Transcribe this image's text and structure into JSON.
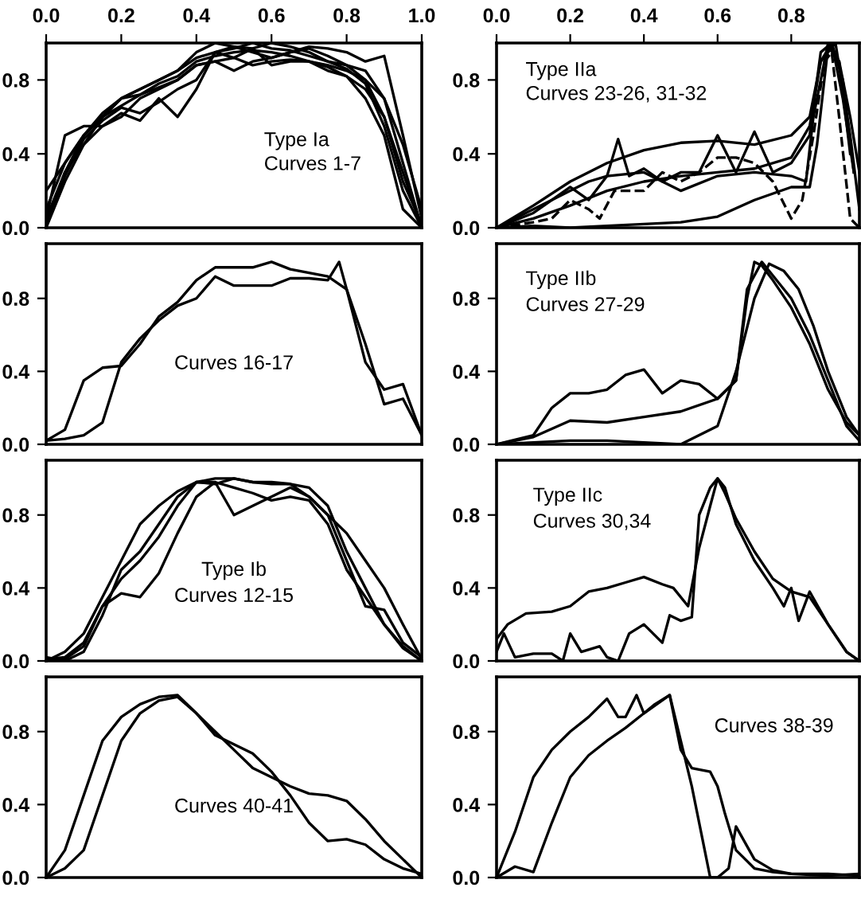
{
  "chart_data": [
    {
      "type": "line",
      "annotations": [
        "Type Ia",
        "Curves 1-7"
      ],
      "xlim": [
        0,
        1
      ],
      "ylim": [
        0,
        1.0
      ],
      "xticks": [
        {
          "value": 0,
          "label": "0.0"
        },
        {
          "value": 0.2,
          "label": "0.2"
        },
        {
          "value": 0.4,
          "label": "0.4"
        },
        {
          "value": 0.6,
          "label": "0.6"
        },
        {
          "value": 0.8,
          "label": "0.8"
        },
        {
          "value": 1.0,
          "label": "1.0"
        }
      ],
      "yticks": [
        {
          "value": 0,
          "label": "0.0"
        },
        {
          "value": 0.4,
          "label": "0.4"
        },
        {
          "value": 0.8,
          "label": "0.8"
        }
      ],
      "series": [
        {
          "color": "#000000",
          "x": [
            0,
            0.05,
            0.1,
            0.15,
            0.2,
            0.25,
            0.3,
            0.35,
            0.4,
            0.45,
            0.5,
            0.55,
            0.6,
            0.65,
            0.7,
            0.75,
            0.8,
            0.85,
            0.9,
            0.95,
            1.0
          ],
          "values": [
            0.05,
            0.5,
            0.55,
            0.55,
            0.6,
            0.7,
            0.75,
            0.8,
            0.88,
            0.9,
            0.85,
            0.9,
            0.92,
            0.95,
            0.98,
            0.97,
            0.95,
            0.9,
            0.93,
            0.5,
            0.05
          ]
        },
        {
          "color": "#000000",
          "x": [
            0,
            0.05,
            0.1,
            0.15,
            0.2,
            0.25,
            0.3,
            0.35,
            0.4,
            0.45,
            0.5,
            0.55,
            0.6,
            0.65,
            0.7,
            0.75,
            0.8,
            0.85,
            0.9,
            0.95,
            1.0
          ],
          "values": [
            0.02,
            0.3,
            0.45,
            0.6,
            0.7,
            0.75,
            0.8,
            0.85,
            0.95,
            1.0,
            0.98,
            0.97,
            1.0,
            0.98,
            0.95,
            0.9,
            0.88,
            0.8,
            0.6,
            0.3,
            0.0
          ]
        },
        {
          "color": "#000000",
          "x": [
            0,
            0.05,
            0.1,
            0.15,
            0.2,
            0.25,
            0.3,
            0.35,
            0.4,
            0.45,
            0.5,
            0.55,
            0.6,
            0.65,
            0.7,
            0.75,
            0.8,
            0.85,
            0.9,
            0.95,
            1.0
          ],
          "values": [
            0.0,
            0.25,
            0.45,
            0.55,
            0.62,
            0.58,
            0.7,
            0.6,
            0.75,
            0.95,
            0.98,
            0.95,
            0.92,
            0.95,
            0.97,
            0.93,
            0.88,
            0.85,
            0.7,
            0.35,
            0.0
          ]
        },
        {
          "color": "#000000",
          "x": [
            0,
            0.05,
            0.1,
            0.15,
            0.2,
            0.25,
            0.3,
            0.35,
            0.4,
            0.45,
            0.5,
            0.55,
            0.6,
            0.65,
            0.7,
            0.75,
            0.8,
            0.85,
            0.9,
            0.95,
            1.0
          ],
          "values": [
            0.05,
            0.3,
            0.5,
            0.62,
            0.7,
            0.72,
            0.78,
            0.82,
            0.9,
            0.93,
            0.95,
            0.96,
            0.95,
            0.93,
            0.9,
            0.88,
            0.85,
            0.8,
            0.7,
            0.45,
            0.1
          ]
        },
        {
          "color": "#000000",
          "x": [
            0,
            0.05,
            0.1,
            0.15,
            0.2,
            0.25,
            0.3,
            0.35,
            0.4,
            0.45,
            0.5,
            0.55,
            0.6,
            0.65,
            0.7,
            0.75,
            0.8,
            0.85,
            0.9,
            0.95,
            1.0
          ],
          "values": [
            0.02,
            0.28,
            0.48,
            0.58,
            0.65,
            0.62,
            0.68,
            0.75,
            0.8,
            0.95,
            0.92,
            0.97,
            0.88,
            0.9,
            0.9,
            0.85,
            0.82,
            0.75,
            0.6,
            0.25,
            0.02
          ]
        },
        {
          "color": "#000000",
          "x": [
            0,
            0.05,
            0.1,
            0.15,
            0.2,
            0.25,
            0.3,
            0.35,
            0.4,
            0.45,
            0.5,
            0.55,
            0.6,
            0.65,
            0.7,
            0.75,
            0.8,
            0.85,
            0.9,
            0.95,
            1.0
          ],
          "values": [
            0.1,
            0.35,
            0.5,
            0.6,
            0.7,
            0.75,
            0.8,
            0.85,
            0.92,
            0.95,
            0.97,
            1.0,
            0.97,
            0.96,
            0.93,
            0.9,
            0.86,
            0.78,
            0.55,
            0.2,
            0.0
          ]
        },
        {
          "color": "#000000",
          "x": [
            0,
            0.05,
            0.1,
            0.15,
            0.2,
            0.25,
            0.3,
            0.35,
            0.4,
            0.45,
            0.5,
            0.55,
            0.6,
            0.65,
            0.7,
            0.75,
            0.8,
            0.85,
            0.9,
            0.95,
            1.0
          ],
          "values": [
            0.2,
            0.35,
            0.5,
            0.6,
            0.66,
            0.72,
            0.76,
            0.8,
            0.88,
            0.9,
            0.92,
            0.88,
            0.9,
            0.91,
            0.9,
            0.87,
            0.82,
            0.7,
            0.5,
            0.1,
            0.0
          ]
        }
      ]
    },
    {
      "type": "line",
      "annotations": [
        "Type IIa",
        "Curves 23-26, 31-32"
      ],
      "xlim": [
        0,
        0.985
      ],
      "ylim": [
        0,
        1.0
      ],
      "xticks": [
        {
          "value": 0,
          "label": "0.0"
        },
        {
          "value": 0.2,
          "label": "0.2"
        },
        {
          "value": 0.4,
          "label": "0.4"
        },
        {
          "value": 0.6,
          "label": "0.6"
        },
        {
          "value": 0.8,
          "label": "0.8"
        }
      ],
      "yticks": [
        {
          "value": 0,
          "label": "0.0"
        },
        {
          "value": 0.4,
          "label": "0.4"
        },
        {
          "value": 0.8,
          "label": "0.8"
        }
      ],
      "series": [
        {
          "color": "#000000",
          "x": [
            0,
            0.1,
            0.2,
            0.3,
            0.4,
            0.5,
            0.6,
            0.7,
            0.8,
            0.85,
            0.88,
            0.92,
            0.96,
            0.985
          ],
          "values": [
            0,
            0.12,
            0.25,
            0.35,
            0.42,
            0.46,
            0.47,
            0.45,
            0.5,
            0.6,
            0.9,
            1.0,
            0.5,
            0.1
          ]
        },
        {
          "color": "#000000",
          "x": [
            0,
            0.1,
            0.2,
            0.3,
            0.4,
            0.5,
            0.6,
            0.7,
            0.8,
            0.85,
            0.87,
            0.9,
            0.93,
            0.96,
            0.985
          ],
          "values": [
            0,
            0.01,
            0.0,
            0.01,
            0.02,
            0.03,
            0.06,
            0.15,
            0.22,
            0.22,
            0.45,
            0.98,
            0.9,
            0.6,
            0.3
          ]
        },
        {
          "color": "#000000",
          "x": [
            0,
            0.1,
            0.2,
            0.25,
            0.3,
            0.33,
            0.36,
            0.4,
            0.45,
            0.5,
            0.55,
            0.6,
            0.65,
            0.7,
            0.75,
            0.8,
            0.85,
            0.88,
            0.91,
            0.94,
            0.97
          ],
          "values": [
            0,
            0.08,
            0.22,
            0.15,
            0.28,
            0.48,
            0.28,
            0.32,
            0.25,
            0.3,
            0.3,
            0.5,
            0.3,
            0.52,
            0.3,
            0.35,
            0.5,
            0.95,
            1.0,
            0.7,
            0.3
          ]
        },
        {
          "color": "#000000",
          "line_style": "dashed",
          "x": [
            0,
            0.1,
            0.15,
            0.2,
            0.25,
            0.28,
            0.32,
            0.4,
            0.45,
            0.5,
            0.55,
            0.6,
            0.65,
            0.7,
            0.75,
            0.8,
            0.83,
            0.86,
            0.89,
            0.91,
            0.93,
            0.96,
            0.985
          ],
          "values": [
            0,
            0.03,
            0.05,
            0.15,
            0.1,
            0.05,
            0.2,
            0.2,
            0.3,
            0.25,
            0.3,
            0.38,
            0.38,
            0.35,
            0.25,
            0.05,
            0.15,
            0.5,
            0.9,
            0.95,
            0.6,
            0.05,
            0.0
          ]
        },
        {
          "color": "#000000",
          "x": [
            0,
            0.1,
            0.2,
            0.3,
            0.4,
            0.5,
            0.6,
            0.7,
            0.8,
            0.85,
            0.88,
            0.91,
            0.94,
            0.97
          ],
          "values": [
            0,
            0.05,
            0.12,
            0.2,
            0.25,
            0.28,
            0.3,
            0.32,
            0.38,
            0.55,
            0.9,
            1.0,
            0.8,
            0.3
          ]
        },
        {
          "color": "#000000",
          "x": [
            0,
            0.1,
            0.2,
            0.25,
            0.3,
            0.4,
            0.45,
            0.5,
            0.6,
            0.7,
            0.8,
            0.84,
            0.86,
            0.9,
            0.93,
            0.96
          ],
          "values": [
            0,
            0.1,
            0.2,
            0.25,
            0.28,
            0.3,
            0.25,
            0.2,
            0.28,
            0.3,
            0.28,
            0.25,
            0.6,
            1.0,
            0.9,
            0.4
          ]
        }
      ]
    },
    {
      "type": "line",
      "annotations": [
        "Curves 16-17"
      ],
      "xlim": [
        0,
        1
      ],
      "ylim": [
        0,
        1.1
      ],
      "tick_labels": "y",
      "yticks": [
        {
          "value": 0,
          "label": "0.0"
        },
        {
          "value": 0.4,
          "label": "0.4"
        },
        {
          "value": 0.8,
          "label": "0.8"
        }
      ],
      "series": [
        {
          "color": "#000000",
          "x": [
            0,
            0.05,
            0.1,
            0.15,
            0.2,
            0.25,
            0.3,
            0.35,
            0.4,
            0.45,
            0.5,
            0.55,
            0.6,
            0.65,
            0.7,
            0.75,
            0.8,
            0.85,
            0.9,
            0.95,
            1.0
          ],
          "values": [
            0.02,
            0.08,
            0.35,
            0.42,
            0.43,
            0.55,
            0.7,
            0.78,
            0.9,
            0.97,
            0.97,
            0.97,
            1.0,
            0.96,
            0.94,
            0.92,
            0.85,
            0.45,
            0.3,
            0.33,
            0.05
          ]
        },
        {
          "color": "#000000",
          "x": [
            0,
            0.05,
            0.1,
            0.15,
            0.2,
            0.25,
            0.3,
            0.35,
            0.4,
            0.45,
            0.5,
            0.55,
            0.6,
            0.65,
            0.7,
            0.75,
            0.78,
            0.8,
            0.85,
            0.9,
            0.95,
            1.0
          ],
          "values": [
            0.02,
            0.03,
            0.05,
            0.12,
            0.45,
            0.58,
            0.68,
            0.76,
            0.8,
            0.92,
            0.87,
            0.87,
            0.87,
            0.91,
            0.91,
            0.9,
            1.0,
            0.85,
            0.55,
            0.22,
            0.25,
            0.05
          ]
        }
      ]
    },
    {
      "type": "line",
      "annotations": [
        "Type IIb",
        "Curves 27-29"
      ],
      "xlim": [
        0,
        0.985
      ],
      "ylim": [
        0,
        1.1
      ],
      "tick_labels": "y",
      "yticks": [
        {
          "value": 0,
          "label": "0.0"
        },
        {
          "value": 0.4,
          "label": "0.4"
        },
        {
          "value": 0.8,
          "label": "0.8"
        }
      ],
      "series": [
        {
          "color": "#000000",
          "x": [
            0,
            0.1,
            0.15,
            0.2,
            0.25,
            0.3,
            0.35,
            0.4,
            0.45,
            0.5,
            0.55,
            0.6,
            0.65,
            0.68,
            0.7,
            0.72,
            0.75,
            0.8,
            0.85,
            0.9,
            0.95,
            0.985
          ],
          "values": [
            0,
            0.05,
            0.2,
            0.28,
            0.28,
            0.3,
            0.38,
            0.41,
            0.28,
            0.35,
            0.33,
            0.25,
            0.35,
            0.8,
            1.0,
            0.98,
            0.9,
            0.75,
            0.55,
            0.3,
            0.12,
            0.05
          ]
        },
        {
          "color": "#000000",
          "x": [
            0,
            0.1,
            0.2,
            0.3,
            0.4,
            0.5,
            0.6,
            0.65,
            0.68,
            0.72,
            0.76,
            0.8,
            0.85,
            0.9,
            0.95,
            0.985
          ],
          "values": [
            0,
            0.04,
            0.13,
            0.12,
            0.15,
            0.18,
            0.25,
            0.35,
            0.85,
            1.0,
            0.9,
            0.8,
            0.6,
            0.35,
            0.1,
            0.02
          ]
        },
        {
          "color": "#000000",
          "x": [
            0,
            0.1,
            0.2,
            0.3,
            0.4,
            0.5,
            0.6,
            0.65,
            0.7,
            0.74,
            0.78,
            0.82,
            0.86,
            0.9,
            0.95,
            0.985
          ],
          "values": [
            0,
            0.01,
            0.02,
            0.02,
            0.01,
            0.0,
            0.1,
            0.4,
            0.8,
            0.99,
            0.95,
            0.85,
            0.65,
            0.4,
            0.15,
            0.05
          ]
        }
      ]
    },
    {
      "type": "line",
      "annotations": [
        "Type Ib",
        "Curves 12-15"
      ],
      "xlim": [
        0,
        1
      ],
      "ylim": [
        0,
        1.1
      ],
      "tick_labels": "y",
      "yticks": [
        {
          "value": 0,
          "label": "0.0"
        },
        {
          "value": 0.4,
          "label": "0.4"
        },
        {
          "value": 0.8,
          "label": "0.8"
        }
      ],
      "series": [
        {
          "color": "#000000",
          "x": [
            0,
            0.05,
            0.1,
            0.15,
            0.2,
            0.25,
            0.3,
            0.35,
            0.4,
            0.45,
            0.5,
            0.55,
            0.6,
            0.65,
            0.7,
            0.75,
            0.8,
            0.85,
            0.9,
            0.95,
            1.0
          ],
          "values": [
            0,
            0.05,
            0.15,
            0.35,
            0.55,
            0.75,
            0.85,
            0.93,
            0.98,
            0.97,
            1.0,
            0.98,
            0.97,
            0.97,
            0.95,
            0.85,
            0.6,
            0.4,
            0.2,
            0.08,
            0
          ]
        },
        {
          "color": "#000000",
          "x": [
            0,
            0.05,
            0.1,
            0.15,
            0.2,
            0.25,
            0.3,
            0.35,
            0.4,
            0.45,
            0.5,
            0.55,
            0.6,
            0.65,
            0.7,
            0.75,
            0.8,
            0.85,
            0.9,
            0.95,
            1.0
          ],
          "values": [
            0.01,
            0.02,
            0.1,
            0.3,
            0.45,
            0.55,
            0.68,
            0.85,
            0.98,
            0.98,
            0.95,
            0.92,
            0.88,
            0.9,
            0.88,
            0.75,
            0.5,
            0.35,
            0.2,
            0.07,
            0
          ]
        },
        {
          "color": "#000000",
          "x": [
            0,
            0.05,
            0.1,
            0.15,
            0.2,
            0.25,
            0.3,
            0.35,
            0.4,
            0.45,
            0.5,
            0.55,
            0.6,
            0.65,
            0.7,
            0.75,
            0.8,
            0.85,
            0.9,
            0.95,
            1.0
          ],
          "values": [
            0,
            0.01,
            0.08,
            0.3,
            0.37,
            0.35,
            0.48,
            0.7,
            0.9,
            0.98,
            0.8,
            0.85,
            0.9,
            0.95,
            0.9,
            0.8,
            0.55,
            0.3,
            0.28,
            0.1,
            0.02
          ]
        },
        {
          "color": "#000000",
          "x": [
            0,
            0.05,
            0.1,
            0.15,
            0.2,
            0.25,
            0.3,
            0.35,
            0.4,
            0.45,
            0.5,
            0.55,
            0.6,
            0.65,
            0.7,
            0.75,
            0.8,
            0.85,
            0.9,
            0.95,
            1.0
          ],
          "values": [
            0.02,
            0.0,
            0.05,
            0.25,
            0.5,
            0.6,
            0.75,
            0.9,
            0.98,
            1.0,
            1.0,
            0.98,
            0.98,
            0.97,
            0.9,
            0.8,
            0.7,
            0.55,
            0.4,
            0.2,
            0.01
          ]
        }
      ]
    },
    {
      "type": "line",
      "annotations": [
        "Type IIc",
        "Curves 30,34"
      ],
      "xlim": [
        0,
        0.985
      ],
      "ylim": [
        0,
        1.1
      ],
      "tick_labels": "y",
      "yticks": [
        {
          "value": 0,
          "label": "0.0"
        },
        {
          "value": 0.4,
          "label": "0.4"
        },
        {
          "value": 0.8,
          "label": "0.8"
        }
      ],
      "series": [
        {
          "color": "#000000",
          "x": [
            0,
            0.03,
            0.08,
            0.15,
            0.2,
            0.25,
            0.3,
            0.35,
            0.4,
            0.45,
            0.48,
            0.52,
            0.55,
            0.58,
            0.6,
            0.62,
            0.65,
            0.7,
            0.75,
            0.8,
            0.85,
            0.9,
            0.95,
            0.985
          ],
          "values": [
            0.12,
            0.2,
            0.26,
            0.27,
            0.3,
            0.38,
            0.4,
            0.43,
            0.46,
            0.42,
            0.4,
            0.3,
            0.62,
            0.85,
            1.0,
            0.92,
            0.78,
            0.6,
            0.45,
            0.38,
            0.35,
            0.2,
            0.05,
            0.0
          ]
        },
        {
          "color": "#000000",
          "x": [
            0,
            0.02,
            0.05,
            0.1,
            0.15,
            0.18,
            0.2,
            0.23,
            0.28,
            0.3,
            0.33,
            0.36,
            0.4,
            0.45,
            0.47,
            0.5,
            0.53,
            0.55,
            0.58,
            0.6,
            0.62,
            0.65,
            0.7,
            0.75,
            0.78,
            0.8,
            0.82,
            0.85,
            0.9,
            0.95,
            0.985
          ],
          "values": [
            0.05,
            0.15,
            0.02,
            0.04,
            0.04,
            0.0,
            0.15,
            0.05,
            0.08,
            0.02,
            0.0,
            0.15,
            0.2,
            0.1,
            0.25,
            0.22,
            0.24,
            0.8,
            0.95,
            1.0,
            0.95,
            0.75,
            0.55,
            0.4,
            0.3,
            0.4,
            0.22,
            0.38,
            0.2,
            0.05,
            0.0
          ]
        }
      ]
    },
    {
      "type": "line",
      "annotations": [
        "Curves 40-41"
      ],
      "xlim": [
        0,
        1
      ],
      "ylim": [
        0,
        1.1
      ],
      "tick_labels": "y",
      "yticks": [
        {
          "value": 0,
          "label": "0.0"
        },
        {
          "value": 0.4,
          "label": "0.4"
        },
        {
          "value": 0.8,
          "label": "0.8"
        }
      ],
      "series": [
        {
          "color": "#000000",
          "x": [
            0,
            0.05,
            0.1,
            0.15,
            0.2,
            0.25,
            0.3,
            0.35,
            0.4,
            0.45,
            0.5,
            0.55,
            0.6,
            0.65,
            0.7,
            0.75,
            0.8,
            0.85,
            0.9,
            0.95,
            1.0
          ],
          "values": [
            0,
            0.15,
            0.45,
            0.75,
            0.88,
            0.95,
            0.99,
            1.0,
            0.9,
            0.8,
            0.7,
            0.6,
            0.55,
            0.5,
            0.46,
            0.45,
            0.42,
            0.32,
            0.2,
            0.1,
            0
          ]
        },
        {
          "color": "#000000",
          "x": [
            0,
            0.05,
            0.1,
            0.15,
            0.2,
            0.25,
            0.3,
            0.35,
            0.4,
            0.45,
            0.5,
            0.55,
            0.6,
            0.65,
            0.7,
            0.75,
            0.8,
            0.85,
            0.9,
            0.95,
            1.0
          ],
          "values": [
            0,
            0.05,
            0.15,
            0.45,
            0.75,
            0.9,
            0.97,
            0.99,
            0.9,
            0.78,
            0.73,
            0.68,
            0.58,
            0.45,
            0.3,
            0.2,
            0.21,
            0.18,
            0.1,
            0.05,
            0.02
          ]
        }
      ]
    },
    {
      "type": "line",
      "annotations": [
        "Curves 38-39"
      ],
      "xlim": [
        0,
        0.985
      ],
      "ylim": [
        0,
        1.1
      ],
      "tick_labels": "y",
      "yticks": [
        {
          "value": 0,
          "label": "0.0"
        },
        {
          "value": 0.4,
          "label": "0.4"
        },
        {
          "value": 0.8,
          "label": "0.8"
        }
      ],
      "series": [
        {
          "color": "#000000",
          "x": [
            0,
            0.05,
            0.1,
            0.15,
            0.2,
            0.25,
            0.3,
            0.33,
            0.35,
            0.38,
            0.4,
            0.43,
            0.47,
            0.5,
            0.53,
            0.58,
            0.6,
            0.62,
            0.65,
            0.7,
            0.75,
            0.8,
            0.9,
            0.985
          ],
          "values": [
            0,
            0.25,
            0.55,
            0.7,
            0.8,
            0.88,
            0.98,
            0.88,
            0.88,
            1.0,
            0.9,
            0.95,
            1.0,
            0.7,
            0.6,
            0.58,
            0.5,
            0.35,
            0.15,
            0.05,
            0.03,
            0.02,
            0.02,
            0.01
          ]
        },
        {
          "color": "#000000",
          "x": [
            0,
            0.05,
            0.1,
            0.15,
            0.2,
            0.25,
            0.3,
            0.35,
            0.4,
            0.47,
            0.5,
            0.53,
            0.56,
            0.58,
            0.6,
            0.63,
            0.65,
            0.7,
            0.75,
            0.8,
            0.9,
            0.985
          ],
          "values": [
            0,
            0.06,
            0.03,
            0.3,
            0.55,
            0.67,
            0.75,
            0.82,
            0.9,
            1.0,
            0.75,
            0.5,
            0.2,
            0.0,
            0.0,
            0.05,
            0.28,
            0.1,
            0.04,
            0.02,
            0.01,
            0.02
          ]
        }
      ]
    }
  ]
}
